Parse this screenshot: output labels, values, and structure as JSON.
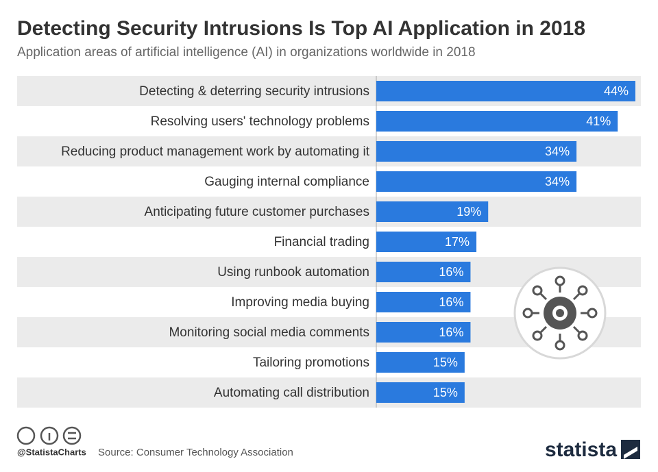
{
  "chart_data": {
    "type": "bar",
    "orientation": "horizontal",
    "title": "Detecting Security Intrusions Is Top AI Application in 2018",
    "subtitle": "Application areas of artificial intelligence (AI) in organizations worldwide in 2018",
    "categories": [
      "Detecting & deterring security intrusions",
      "Resolving users' technology problems",
      "Reducing product management work by automating it",
      "Gauging internal compliance",
      "Anticipating future customer purchases",
      "Financial trading",
      "Using runbook automation",
      "Improving media buying",
      "Monitoring social media comments",
      "Tailoring promotions",
      "Automating call distribution"
    ],
    "values": [
      44,
      41,
      34,
      34,
      19,
      17,
      16,
      16,
      16,
      15,
      15
    ],
    "value_labels": [
      "44%",
      "41%",
      "34%",
      "34%",
      "19%",
      "17%",
      "16%",
      "16%",
      "16%",
      "15%",
      "15%"
    ],
    "color": "#2a7ade"
  },
  "footer": {
    "handle": "@StatistaCharts",
    "source": "Source: Consumer Technology Association",
    "brand": "statista"
  }
}
